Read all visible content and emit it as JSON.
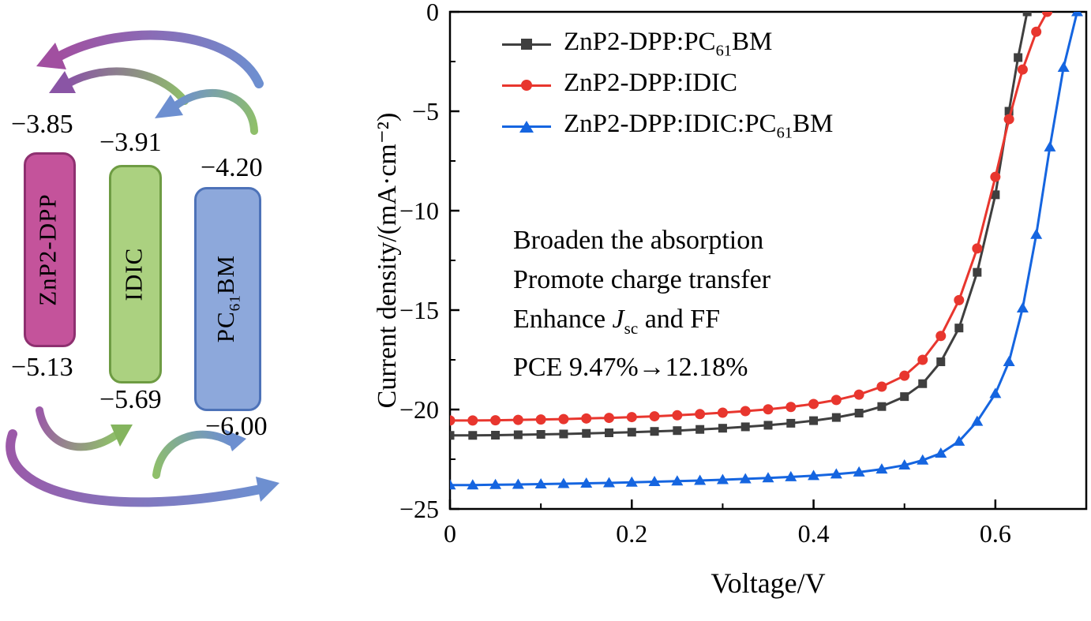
{
  "diagram": {
    "materials": [
      {
        "label_pre": "ZnP2-DPP",
        "label_sub": "",
        "label_post": "",
        "lumo": "−3.85",
        "homo": "−5.13",
        "fill": "#c4539b",
        "border": "#8e3070"
      },
      {
        "label_pre": "IDIC",
        "label_sub": "",
        "label_post": "",
        "lumo": "−3.91",
        "homo": "−5.69",
        "fill": "#abd180",
        "border": "#6e9c43"
      },
      {
        "label_pre": "PC",
        "label_sub": "61",
        "label_post": "BM",
        "lumo": "−4.20",
        "homo": "−6.00",
        "fill": "#8da8db",
        "border": "#4d72b8"
      }
    ]
  },
  "chart": {
    "legend": [
      {
        "pre": "ZnP2-DPP:PC",
        "sub": "61",
        "post": "BM"
      },
      {
        "pre": "ZnP2-DPP:IDIC",
        "sub": "",
        "post": ""
      },
      {
        "pre": "ZnP2-DPP:IDIC:PC",
        "sub": "61",
        "post": "BM"
      }
    ],
    "jsc_line": {
      "pre": "Enhance ",
      "j": "J",
      "sub": "sc",
      "post": " and FF"
    }
  },
  "chart_data": {
    "type": "line",
    "title": "",
    "xlabel": "Voltage/V",
    "ylabel": "Current density/(mA·cm⁻²)",
    "xlim": [
      0,
      0.7
    ],
    "ylim": [
      -25,
      0
    ],
    "xticks": [
      0,
      0.2,
      0.4,
      0.6
    ],
    "yticks": [
      0,
      -5,
      -10,
      -15,
      -20,
      -25
    ],
    "grid": false,
    "legend_position": "inside top-left",
    "annotations": [
      "Broaden the absorption",
      "Promote charge transfer",
      "Enhance Jsc and FF",
      "PCE 9.47%→12.18%"
    ],
    "series": [
      {
        "name": "ZnP2-DPP:PC61BM",
        "color": "#3f3f3f",
        "marker": "square",
        "x": [
          0,
          0.025,
          0.05,
          0.075,
          0.1,
          0.125,
          0.15,
          0.175,
          0.2,
          0.225,
          0.25,
          0.275,
          0.3,
          0.325,
          0.35,
          0.375,
          0.4,
          0.425,
          0.45,
          0.475,
          0.5,
          0.52,
          0.54,
          0.56,
          0.58,
          0.6,
          0.615,
          0.625,
          0.635
        ],
        "y": [
          -21.3,
          -21.3,
          -21.29,
          -21.27,
          -21.25,
          -21.23,
          -21.2,
          -21.17,
          -21.14,
          -21.1,
          -21.06,
          -21.0,
          -20.94,
          -20.87,
          -20.79,
          -20.69,
          -20.56,
          -20.4,
          -20.18,
          -19.85,
          -19.35,
          -18.7,
          -17.6,
          -15.9,
          -13.1,
          -9.2,
          -5.0,
          -2.3,
          0
        ]
      },
      {
        "name": "ZnP2-DPP:IDIC",
        "color": "#e8362e",
        "marker": "circle",
        "x": [
          0,
          0.025,
          0.05,
          0.075,
          0.1,
          0.125,
          0.15,
          0.175,
          0.2,
          0.225,
          0.25,
          0.275,
          0.3,
          0.325,
          0.35,
          0.375,
          0.4,
          0.425,
          0.45,
          0.475,
          0.5,
          0.52,
          0.54,
          0.56,
          0.58,
          0.6,
          0.615,
          0.63,
          0.645,
          0.657
        ],
        "y": [
          -20.55,
          -20.55,
          -20.54,
          -20.52,
          -20.5,
          -20.48,
          -20.45,
          -20.42,
          -20.38,
          -20.34,
          -20.29,
          -20.23,
          -20.16,
          -20.08,
          -19.99,
          -19.87,
          -19.72,
          -19.52,
          -19.25,
          -18.85,
          -18.3,
          -17.5,
          -16.3,
          -14.5,
          -11.9,
          -8.3,
          -5.4,
          -2.9,
          -1.0,
          0
        ]
      },
      {
        "name": "ZnP2-DPP:IDIC:PC61BM",
        "color": "#1565e0",
        "marker": "triangle",
        "x": [
          0,
          0.025,
          0.05,
          0.075,
          0.1,
          0.125,
          0.15,
          0.175,
          0.2,
          0.225,
          0.25,
          0.275,
          0.3,
          0.325,
          0.35,
          0.375,
          0.4,
          0.425,
          0.45,
          0.475,
          0.5,
          0.52,
          0.54,
          0.56,
          0.58,
          0.6,
          0.615,
          0.63,
          0.645,
          0.66,
          0.675,
          0.69
        ],
        "y": [
          -23.8,
          -23.8,
          -23.78,
          -23.77,
          -23.75,
          -23.73,
          -23.71,
          -23.69,
          -23.66,
          -23.63,
          -23.6,
          -23.57,
          -23.53,
          -23.49,
          -23.44,
          -23.39,
          -23.33,
          -23.25,
          -23.15,
          -23.0,
          -22.8,
          -22.55,
          -22.2,
          -21.6,
          -20.6,
          -19.2,
          -17.6,
          -14.9,
          -11.2,
          -6.8,
          -2.8,
          0
        ]
      }
    ]
  }
}
